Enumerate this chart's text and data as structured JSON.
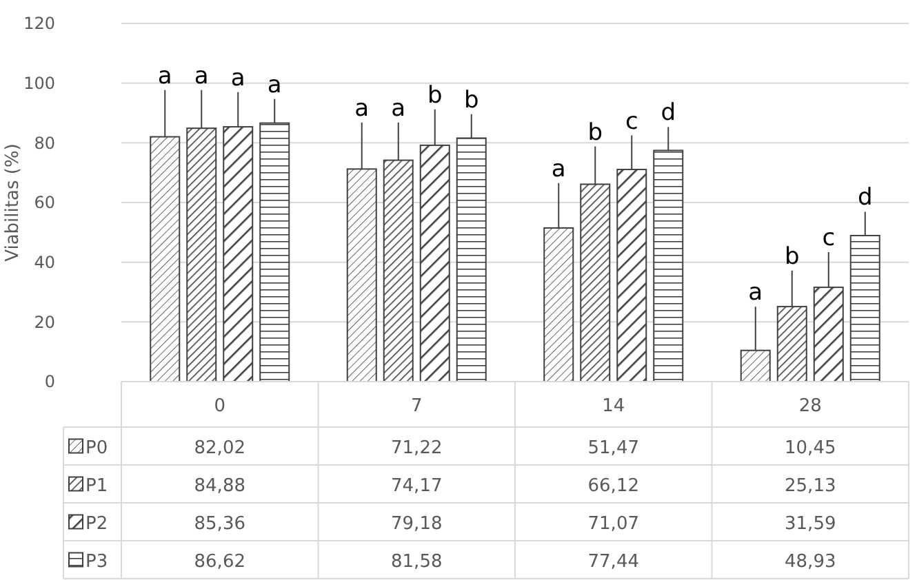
{
  "chart_data": {
    "type": "bar",
    "ylabel": "Viabilitas (%)",
    "categories": [
      "0",
      "7",
      "14",
      "28"
    ],
    "ylim": [
      0,
      120
    ],
    "yticks": [
      0,
      20,
      40,
      60,
      80,
      100,
      120
    ],
    "grid": "y",
    "legend": "bottom",
    "series": [
      {
        "name": "P0",
        "color": "#404040",
        "values": [
          82.02,
          71.22,
          51.47,
          10.45
        ],
        "errors": [
          [
            82.02,
            97.7
          ],
          [
            71.22,
            86.8
          ],
          [
            51.47,
            66.5
          ],
          [
            10.45,
            25.1
          ]
        ],
        "value_labels": [
          "82,02",
          "71,22",
          "51,47",
          "10,45"
        ]
      },
      {
        "name": "P1",
        "color": "#404040",
        "values": [
          84.88,
          74.17,
          66.12,
          25.13
        ],
        "errors": [
          [
            84.88,
            97.7
          ],
          [
            74.17,
            86.8
          ],
          [
            66.12,
            78.8
          ],
          [
            25.13,
            37.2
          ]
        ],
        "value_labels": [
          "84,88",
          "74,17",
          "66,12",
          "25,13"
        ]
      },
      {
        "name": "P2",
        "color": "#404040",
        "values": [
          85.36,
          79.18,
          71.07,
          31.59
        ],
        "errors": [
          [
            85.36,
            97
          ],
          [
            79.18,
            91.2
          ],
          [
            71.07,
            82.5
          ],
          [
            31.59,
            43.4
          ]
        ],
        "value_labels": [
          "85,36",
          "79,18",
          "71,07",
          "31,59"
        ]
      },
      {
        "name": "P3",
        "color": "#404040",
        "values": [
          86.62,
          81.58,
          77.44,
          48.93
        ],
        "errors": [
          [
            86.62,
            94.7
          ],
          [
            81.58,
            89.6
          ],
          [
            77.44,
            85.3
          ],
          [
            48.93,
            56.9
          ]
        ],
        "value_labels": [
          "86,62",
          "81,58",
          "77,44",
          "48,93"
        ]
      }
    ],
    "annotations": [
      "a",
      "a",
      "a",
      "a",
      "a",
      "a",
      "b",
      "b",
      "a",
      "b",
      "c",
      "d",
      "a",
      "b",
      "c",
      "d"
    ]
  }
}
